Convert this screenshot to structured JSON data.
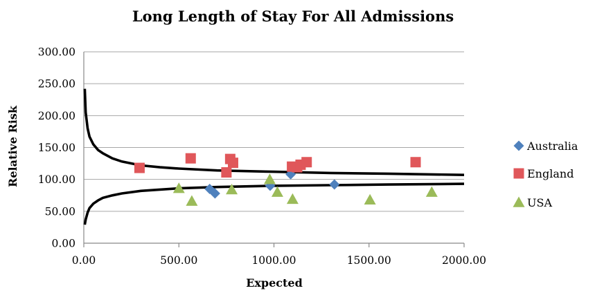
{
  "chart_data": {
    "type": "scatter",
    "title": "Long Length of Stay For All Admissions",
    "xlabel": "Expected",
    "ylabel": "Relative Risk",
    "xlim": [
      0,
      2000
    ],
    "ylim": [
      0,
      300
    ],
    "x_ticks": [
      "0.00",
      "500.00",
      "1000.00",
      "1500.00",
      "2000.00"
    ],
    "y_ticks": [
      "0.00",
      "50.00",
      "100.00",
      "150.00",
      "200.00",
      "250.00",
      "300.00"
    ],
    "grid": true,
    "legend_position": "right",
    "series": [
      {
        "name": "Australia",
        "marker": "diamond",
        "color": "#4f81bd",
        "points": [
          {
            "x": 662,
            "y": 85
          },
          {
            "x": 690,
            "y": 78
          },
          {
            "x": 980,
            "y": 90
          },
          {
            "x": 1088,
            "y": 108
          },
          {
            "x": 1318,
            "y": 92
          }
        ]
      },
      {
        "name": "England",
        "marker": "square",
        "color": "#e0575a",
        "points": [
          {
            "x": 293,
            "y": 118
          },
          {
            "x": 562,
            "y": 133
          },
          {
            "x": 750,
            "y": 111
          },
          {
            "x": 770,
            "y": 132
          },
          {
            "x": 785,
            "y": 126
          },
          {
            "x": 1095,
            "y": 120
          },
          {
            "x": 1122,
            "y": 119
          },
          {
            "x": 1140,
            "y": 123
          },
          {
            "x": 1172,
            "y": 127
          },
          {
            "x": 1745,
            "y": 127
          }
        ]
      },
      {
        "name": "USA",
        "marker": "triangle",
        "color": "#9bbb59",
        "points": [
          {
            "x": 500,
            "y": 86
          },
          {
            "x": 568,
            "y": 66
          },
          {
            "x": 778,
            "y": 84
          },
          {
            "x": 978,
            "y": 100
          },
          {
            "x": 1018,
            "y": 80
          },
          {
            "x": 1098,
            "y": 69
          },
          {
            "x": 1505,
            "y": 68
          },
          {
            "x": 1830,
            "y": 80
          }
        ]
      }
    ],
    "control_limits": {
      "upper": [
        {
          "x": 5,
          "y": 242
        },
        {
          "x": 10,
          "y": 205
        },
        {
          "x": 20,
          "y": 180
        },
        {
          "x": 30,
          "y": 167
        },
        {
          "x": 50,
          "y": 155
        },
        {
          "x": 75,
          "y": 146
        },
        {
          "x": 100,
          "y": 141
        },
        {
          "x": 150,
          "y": 133
        },
        {
          "x": 200,
          "y": 128
        },
        {
          "x": 300,
          "y": 122
        },
        {
          "x": 400,
          "y": 119
        },
        {
          "x": 500,
          "y": 117
        },
        {
          "x": 700,
          "y": 114
        },
        {
          "x": 1000,
          "y": 112
        },
        {
          "x": 1300,
          "y": 110
        },
        {
          "x": 1600,
          "y": 109
        },
        {
          "x": 2000,
          "y": 107
        }
      ],
      "lower": [
        {
          "x": 5,
          "y": 29
        },
        {
          "x": 10,
          "y": 37
        },
        {
          "x": 20,
          "y": 48
        },
        {
          "x": 30,
          "y": 55
        },
        {
          "x": 50,
          "y": 62
        },
        {
          "x": 75,
          "y": 67
        },
        {
          "x": 100,
          "y": 71
        },
        {
          "x": 150,
          "y": 75
        },
        {
          "x": 200,
          "y": 78
        },
        {
          "x": 300,
          "y": 82
        },
        {
          "x": 400,
          "y": 84
        },
        {
          "x": 500,
          "y": 86
        },
        {
          "x": 700,
          "y": 88
        },
        {
          "x": 1000,
          "y": 90
        },
        {
          "x": 1300,
          "y": 91
        },
        {
          "x": 1600,
          "y": 92
        },
        {
          "x": 2000,
          "y": 93
        }
      ]
    }
  }
}
